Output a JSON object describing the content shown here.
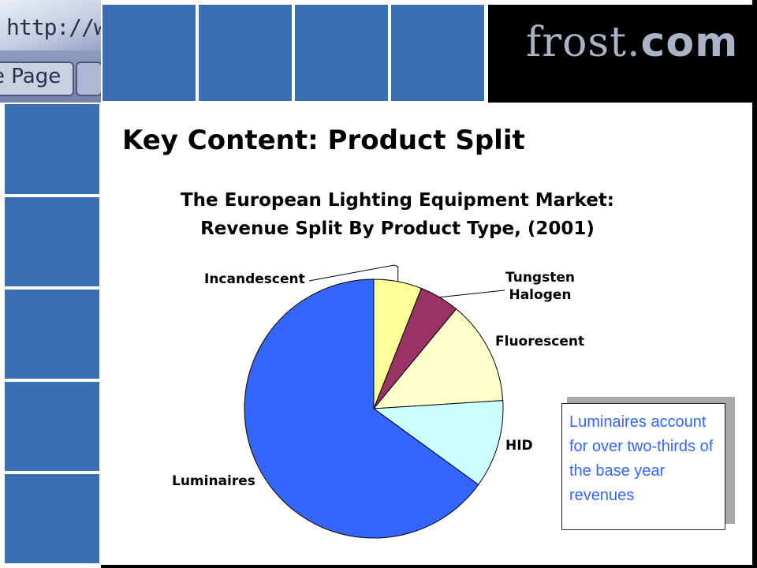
{
  "header": {
    "photo_text_1": "http://w",
    "photo_text_2": "e Page",
    "brand_name": "frost",
    "brand_dot": ".",
    "brand_tld": "com"
  },
  "page": {
    "title": "Key Content: Product Split"
  },
  "colors": {
    "tile": "#3b6fb4",
    "brand_bg": "#000000",
    "callout_text": "#3366ff"
  },
  "chart_data": {
    "type": "pie",
    "title": "The European Lighting Equipment Market:",
    "subtitle": "Revenue Split By Product Type, (2001)",
    "start": "top",
    "direction": "clockwise",
    "categories": [
      "Incandescent",
      "Tungsten Halogen",
      "Fluorescent",
      "HID",
      "Luminaires"
    ],
    "label_lines": [
      [
        "Incandescent"
      ],
      [
        "Tungsten",
        "Halogen"
      ],
      [
        "Fluorescent"
      ],
      [
        "HID"
      ],
      [
        "Luminaires"
      ]
    ],
    "values": [
      6,
      5,
      13,
      11,
      65
    ],
    "colors": [
      "#ffff99",
      "#993366",
      "#ffffcc",
      "#ccffff",
      "#3366ff"
    ]
  },
  "callout": {
    "text": "Luminaires account for over two-thirds of the base year revenues"
  }
}
